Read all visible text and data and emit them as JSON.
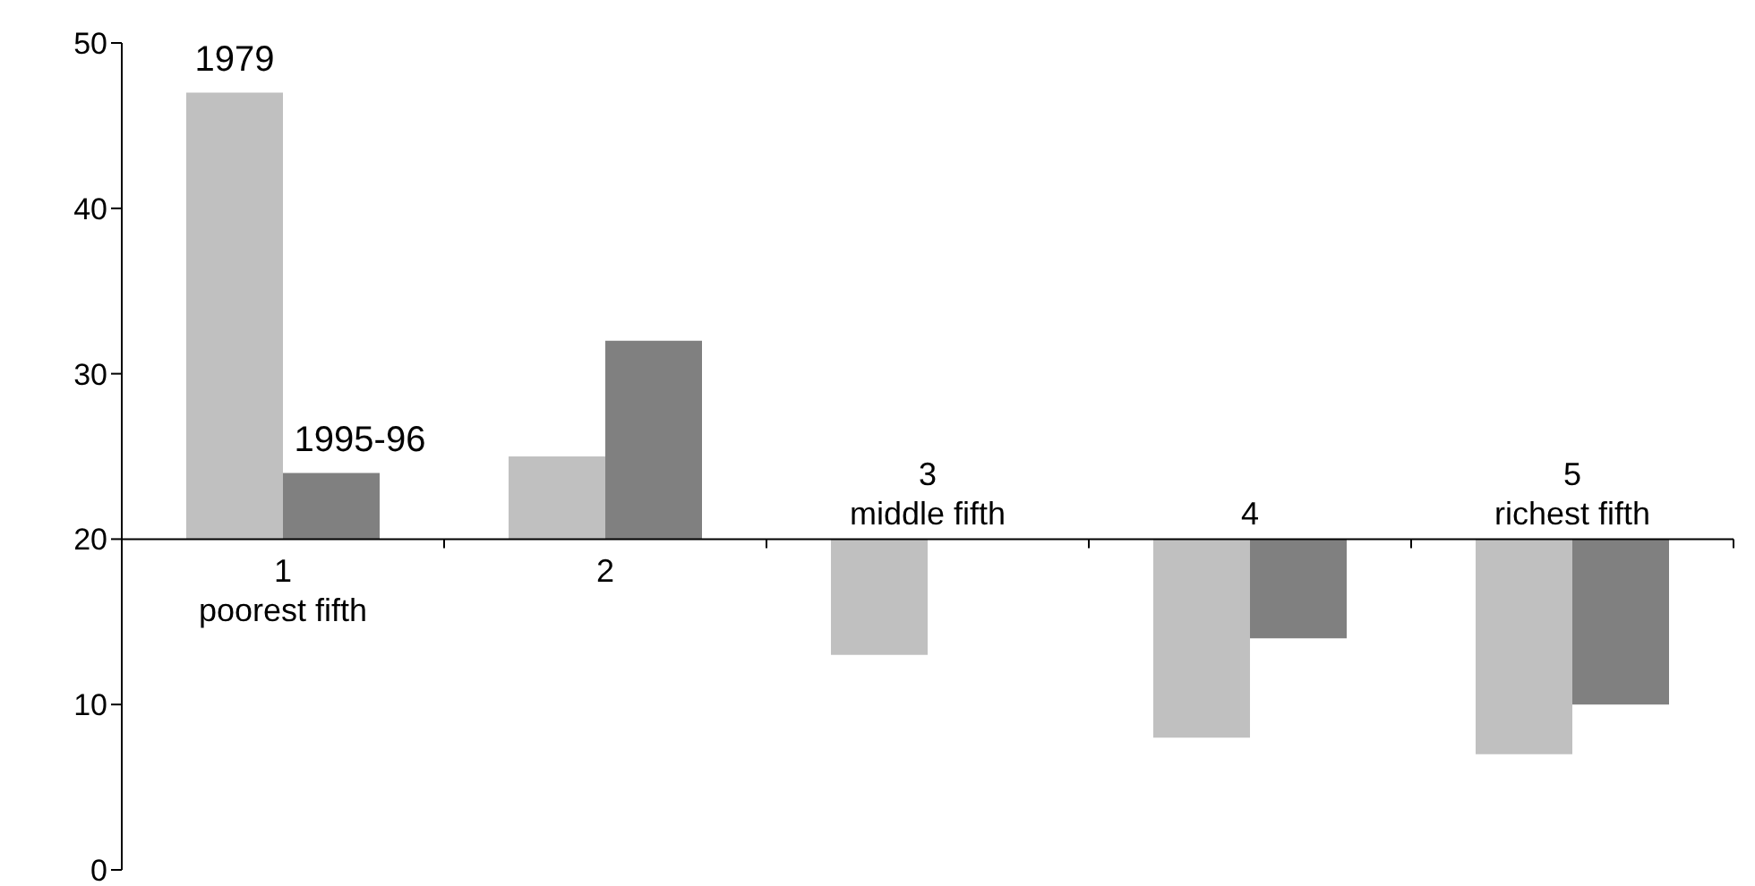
{
  "chart_data": {
    "type": "bar",
    "categories": [
      "1\npoorest fifth",
      "2",
      "3\nmiddle fifth",
      "4",
      "5\nrichest fifth"
    ],
    "series": [
      {
        "name": "1979",
        "color": "#c0c0c0",
        "values": [
          27,
          5,
          -7,
          -12,
          -13
        ],
        "base": [
          20,
          20,
          20,
          20,
          20
        ]
      },
      {
        "name": "1995-96",
        "color": "#808080",
        "values": [
          4,
          12,
          null,
          -6,
          -10
        ],
        "base": [
          20,
          20,
          null,
          20,
          20
        ]
      }
    ],
    "ylim": [
      0,
      50
    ],
    "yticks": [
      0,
      10,
      20,
      30,
      40,
      50
    ]
  }
}
